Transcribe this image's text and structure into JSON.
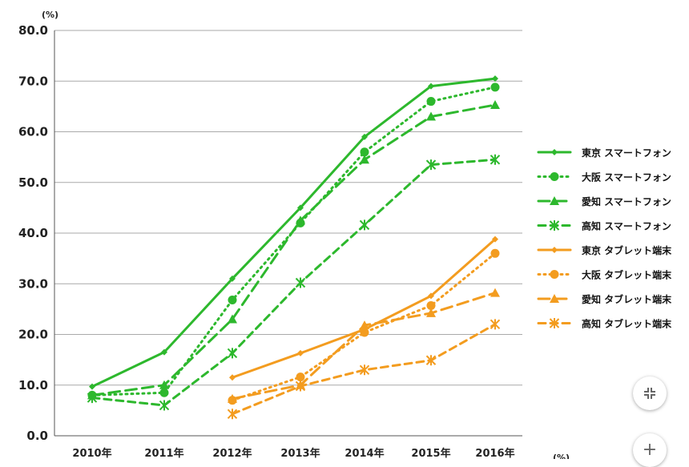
{
  "chart_data": {
    "type": "line",
    "y_unit": "(%)",
    "x_unit": "(%)",
    "categories": [
      "2010年",
      "2011年",
      "2012年",
      "2013年",
      "2014年",
      "2015年",
      "2016年"
    ],
    "y_ticks": [
      "0.0",
      "10.0",
      "20.0",
      "30.0",
      "40.0",
      "50.0",
      "60.0",
      "70.0",
      "80.0"
    ],
    "ylim": [
      0,
      80
    ],
    "grid": true,
    "legend_position": "right",
    "series": [
      {
        "name": "東京 スマートフォン",
        "color": "#2db82d",
        "style": "solid",
        "marker": "diamond",
        "values": [
          9.7,
          16.5,
          31.0,
          45.0,
          59.0,
          69.0,
          70.5
        ]
      },
      {
        "name": "大阪 スマートフォン",
        "color": "#2db82d",
        "style": "dotted",
        "marker": "circle",
        "values": [
          8.0,
          8.5,
          26.8,
          42.0,
          56.0,
          66.0,
          68.8
        ]
      },
      {
        "name": "愛知 スマートフォン",
        "color": "#2db82d",
        "style": "dashed",
        "marker": "triangle",
        "values": [
          8.0,
          10.0,
          23.0,
          42.5,
          54.5,
          63.0,
          65.3
        ]
      },
      {
        "name": "高知 スマートフォン",
        "color": "#2db82d",
        "style": "shortdash",
        "marker": "star",
        "values": [
          7.5,
          6.0,
          16.3,
          30.2,
          41.6,
          53.5,
          54.5
        ]
      },
      {
        "name": "東京 タブレット端末",
        "color": "#f39c1f",
        "style": "solid",
        "marker": "diamond",
        "values": [
          null,
          null,
          11.5,
          16.3,
          21.0,
          27.6,
          38.8
        ]
      },
      {
        "name": "大阪 タブレット端末",
        "color": "#f39c1f",
        "style": "dotted",
        "marker": "circle",
        "values": [
          null,
          null,
          7.0,
          11.6,
          20.4,
          25.7,
          36.0
        ]
      },
      {
        "name": "愛知 タブレット端末",
        "color": "#f39c1f",
        "style": "dashed",
        "marker": "triangle",
        "values": [
          null,
          null,
          7.3,
          10.0,
          21.8,
          24.2,
          28.2
        ]
      },
      {
        "name": "高知 タブレット端末",
        "color": "#f39c1f",
        "style": "shortdash",
        "marker": "star",
        "values": [
          null,
          null,
          4.3,
          9.8,
          13.0,
          14.9,
          22.0
        ]
      }
    ]
  },
  "controls": {
    "collapse_icon": "collapse-icon",
    "zoom_in_icon": "plus-icon",
    "zoom_in_glyph": "+"
  }
}
